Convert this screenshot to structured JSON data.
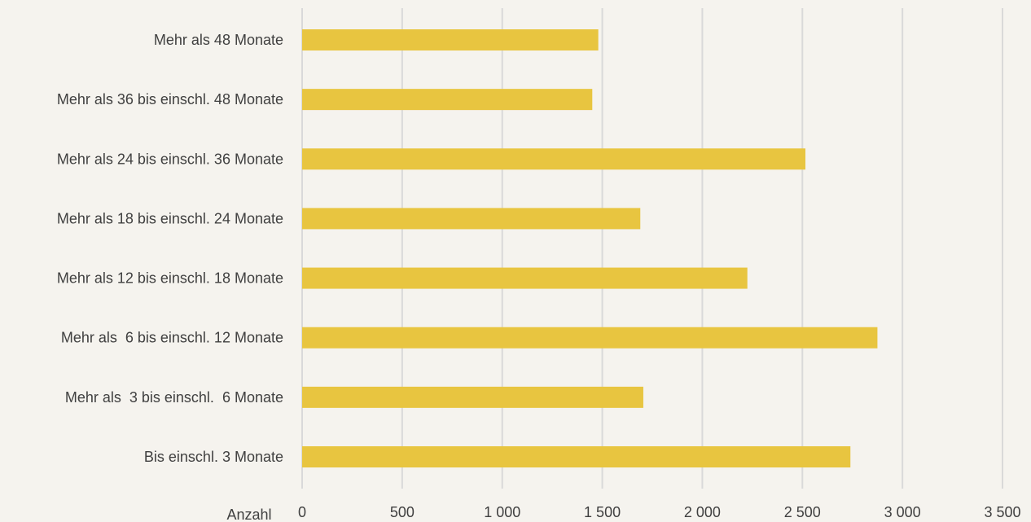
{
  "chart_data": {
    "type": "bar",
    "orientation": "horizontal",
    "categories": [
      "Mehr als 48 Monate",
      "Mehr als 36 bis einschl. 48 Monate",
      "Mehr als 24 bis einschl. 36 Monate",
      "Mehr als 18 bis einschl. 24 Monate",
      "Mehr als 12 bis einschl. 18 Monate",
      "Mehr als  6 bis einschl. 12 Monate",
      "Mehr als  3 bis einschl.  6 Monate",
      "Bis einschl. 3 Monate"
    ],
    "values": [
      1480,
      1450,
      2515,
      1690,
      2225,
      2875,
      1705,
      2740
    ],
    "xlabel": "Anzahl",
    "xlim": [
      0,
      3500
    ],
    "x_ticks": [
      0,
      500,
      1000,
      1500,
      2000,
      2500,
      3000,
      3500
    ],
    "x_tick_labels": [
      "0",
      "500",
      "1 000",
      "1 500",
      "2 000",
      "2 500",
      "3 000",
      "3 500"
    ],
    "grid": "vertical",
    "bar_color": "#e8c540",
    "grid_color": "#d9d9d9",
    "background_color": "#f5f3ee"
  }
}
